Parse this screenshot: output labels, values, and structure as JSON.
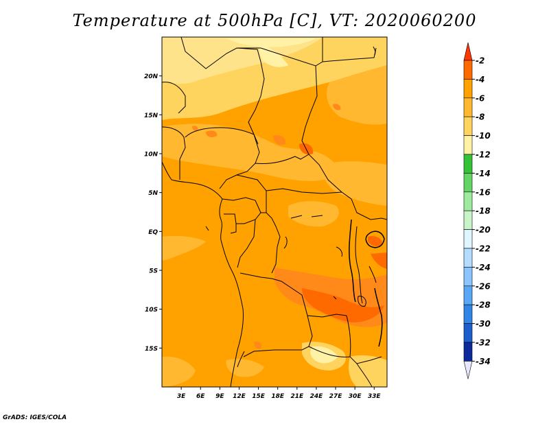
{
  "title": "Temperature at 500hPa [C], VT: 2020060200",
  "credit": "GrADS: IGES/COLA",
  "map": {
    "lat_range": [
      -20,
      25
    ],
    "lon_range": [
      0,
      35
    ],
    "lat_ticks": [
      {
        "value": 20,
        "label": "20N"
      },
      {
        "value": 15,
        "label": "15N"
      },
      {
        "value": 10,
        "label": "10N"
      },
      {
        "value": 5,
        "label": "5N"
      },
      {
        "value": 0,
        "label": "EQ"
      },
      {
        "value": -5,
        "label": "5S"
      },
      {
        "value": -10,
        "label": "10S"
      },
      {
        "value": -15,
        "label": "15S"
      }
    ],
    "lon_ticks": [
      {
        "value": 3,
        "label": "3E"
      },
      {
        "value": 6,
        "label": "6E"
      },
      {
        "value": 9,
        "label": "9E"
      },
      {
        "value": 12,
        "label": "12E"
      },
      {
        "value": 15,
        "label": "15E"
      },
      {
        "value": 18,
        "label": "18E"
      },
      {
        "value": 21,
        "label": "21E"
      },
      {
        "value": 24,
        "label": "24E"
      },
      {
        "value": 27,
        "label": "27E"
      },
      {
        "value": 30,
        "label": "30E"
      },
      {
        "value": 33,
        "label": "33E"
      }
    ]
  },
  "colorbar": {
    "levels": [
      {
        "label": "-2",
        "color": "#ff6a00"
      },
      {
        "label": "-4",
        "color": "#ffa200"
      },
      {
        "label": "-6",
        "color": "#ffb830"
      },
      {
        "label": "-8",
        "color": "#ffd45e"
      },
      {
        "label": "-10",
        "color": "#fff2a6"
      },
      {
        "label": "-12",
        "color": "#36c236"
      },
      {
        "label": "-14",
        "color": "#64d464"
      },
      {
        "label": "-16",
        "color": "#9eea9e"
      },
      {
        "label": "-18",
        "color": "#c8f4c8"
      },
      {
        "label": "-20",
        "color": "#e0f6ff"
      },
      {
        "label": "-22",
        "color": "#b4dcff"
      },
      {
        "label": "-24",
        "color": "#8cc4ff"
      },
      {
        "label": "-26",
        "color": "#5aa8f5"
      },
      {
        "label": "-28",
        "color": "#2f86e6"
      },
      {
        "label": "-30",
        "color": "#1c5ecc"
      },
      {
        "label": "-32",
        "color": "#0d2a9a"
      },
      {
        "label": "-34",
        "color": "#e6e6ff"
      }
    ],
    "top_arrow_color": "#ff3800",
    "bottom_arrow_color": "#e6e6ff"
  }
}
